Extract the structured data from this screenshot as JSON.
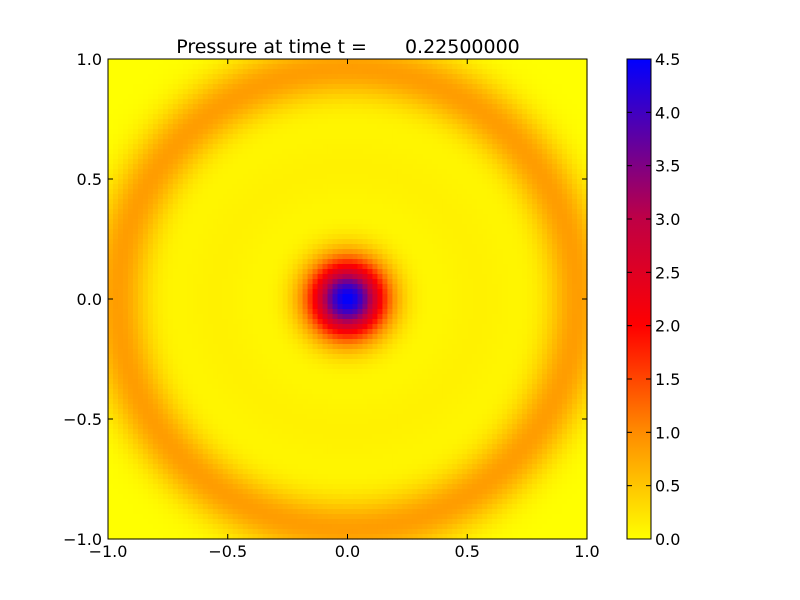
{
  "chart_data": {
    "type": "heatmap",
    "title": "Pressure at time t =",
    "title_value": "0.22500000",
    "xlabel": "",
    "ylabel": "",
    "xlim": [
      -1.0,
      1.0
    ],
    "ylim": [
      -1.0,
      1.0
    ],
    "x_ticks": [
      {
        "value": -1.0,
        "label": "−1.0"
      },
      {
        "value": -0.5,
        "label": "−0.5"
      },
      {
        "value": 0.0,
        "label": "0.0"
      },
      {
        "value": 0.5,
        "label": "0.5"
      },
      {
        "value": 1.0,
        "label": "1.0"
      }
    ],
    "y_ticks": [
      {
        "value": -1.0,
        "label": "−1.0"
      },
      {
        "value": -0.5,
        "label": "−0.5"
      },
      {
        "value": 0.0,
        "label": "0.0"
      },
      {
        "value": 0.5,
        "label": "0.5"
      },
      {
        "value": 1.0,
        "label": "1.0"
      }
    ],
    "colorbar": {
      "range": [
        0.0,
        4.5
      ],
      "ticks": [
        {
          "value": 0.0,
          "label": "0.0"
        },
        {
          "value": 0.5,
          "label": "0.5"
        },
        {
          "value": 1.0,
          "label": "1.0"
        },
        {
          "value": 1.5,
          "label": "1.5"
        },
        {
          "value": 2.0,
          "label": "2.0"
        },
        {
          "value": 2.5,
          "label": "2.5"
        },
        {
          "value": 3.0,
          "label": "3.0"
        },
        {
          "value": 3.5,
          "label": "3.5"
        },
        {
          "value": 4.0,
          "label": "4.0"
        },
        {
          "value": 4.5,
          "label": "4.5"
        }
      ],
      "color_stops": [
        {
          "value": 0.0,
          "color": "#ffff00"
        },
        {
          "value": 1.0,
          "color": "#ff8c00"
        },
        {
          "value": 2.0,
          "color": "#ff0000"
        },
        {
          "value": 3.0,
          "color": "#bf0045"
        },
        {
          "value": 4.5,
          "color": "#0000ff"
        }
      ]
    },
    "field": {
      "grid_n": 96,
      "center_peak": {
        "x": 0.0,
        "y": 0.0,
        "value": 4.5,
        "width": 0.11
      },
      "ring": {
        "radius": 0.96,
        "value": 0.85,
        "width": 0.09
      },
      "inner_ring": {
        "radius": 0.55,
        "value": 0.12,
        "width": 0.15
      }
    }
  }
}
